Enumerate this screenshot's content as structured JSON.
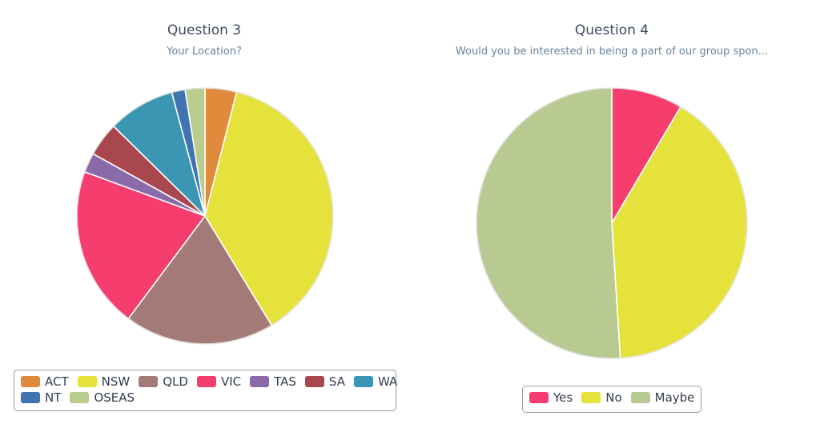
{
  "chart_data": [
    {
      "type": "pie",
      "title": "Question 3",
      "subtitle": "Your Location?",
      "categories": [
        "ACT",
        "NSW",
        "QLD",
        "VIC",
        "TAS",
        "SA",
        "WA",
        "NT",
        "OSEAS"
      ],
      "values": [
        4.0,
        37.5,
        19.0,
        20.5,
        2.5,
        4.3,
        8.5,
        1.7,
        2.5
      ],
      "colors": [
        "#e08a3c",
        "#e6e23c",
        "#a37a78",
        "#f53e6e",
        "#8a6aa8",
        "#a8484e",
        "#3a96b2",
        "#3f74b0",
        "#b8cc8e"
      ],
      "legend": {
        "position": "bottom",
        "rows": [
          [
            "ACT",
            "NSW",
            "QLD",
            "VIC",
            "TAS",
            "SA",
            "WA"
          ],
          [
            "NT",
            "OSEAS"
          ]
        ]
      }
    },
    {
      "type": "pie",
      "title": "Question 4",
      "subtitle": "Would you be interested in being a part of our group spon...",
      "categories": [
        "Yes",
        "No",
        "Maybe"
      ],
      "values": [
        8.5,
        40.5,
        51.0
      ],
      "colors": [
        "#f53e6e",
        "#e6e23c",
        "#b8ca92"
      ],
      "legend": {
        "position": "bottom",
        "rows": [
          [
            "Yes",
            "No",
            "Maybe"
          ]
        ]
      }
    }
  ]
}
